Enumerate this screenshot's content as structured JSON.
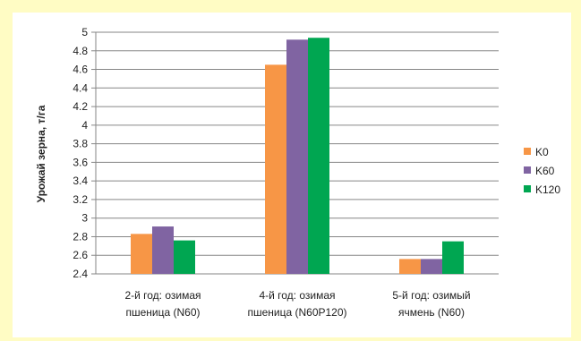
{
  "chart_data": {
    "type": "bar",
    "title": "",
    "xlabel": "",
    "ylabel": "Урожай зерна, т/га",
    "ylim": [
      2.4,
      5
    ],
    "yticks": [
      "2.4",
      "2.6",
      "2.8",
      "3",
      "3.2",
      "3.4",
      "3.6",
      "3.8",
      "4",
      "4.2",
      "4.4",
      "4.6",
      "4.8",
      "5"
    ],
    "categories": [
      [
        "2-й год: озимая",
        "пшеница (N60)"
      ],
      [
        "4-й год: озимая",
        "пшеница (N60P120)"
      ],
      [
        "5-й год: озимый",
        "ячмень (N60)"
      ]
    ],
    "series": [
      {
        "name": "K0",
        "color": "#f79646",
        "values": [
          2.83,
          4.65,
          2.56
        ]
      },
      {
        "name": "K60",
        "color": "#8064a2",
        "values": [
          2.91,
          4.92,
          2.56
        ]
      },
      {
        "name": "K120",
        "color": "#00a651",
        "values": [
          2.76,
          4.94,
          2.75
        ]
      }
    ],
    "grid": true,
    "legend": "right",
    "colors": {
      "background": "#fffcc4",
      "plot_background": "#ffffff",
      "grid": "#868686"
    }
  }
}
